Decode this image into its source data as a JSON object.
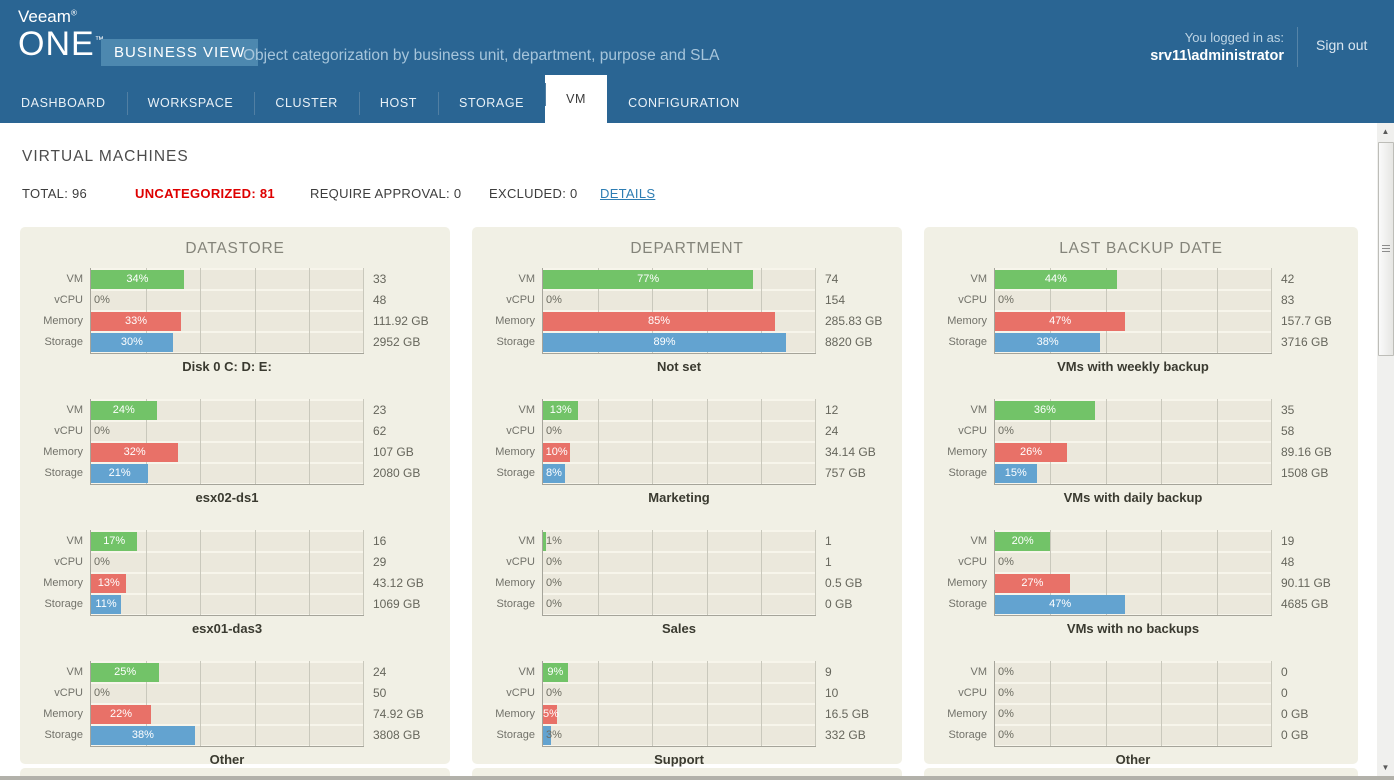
{
  "header": {
    "brand_line1": "Veeam",
    "brand_reg": "®",
    "brand_line2": "ONE",
    "brand_tm": "™",
    "badge": "BUSINESS VIEW",
    "subtitle": "Object categorization by business unit, department, purpose and SLA",
    "login_label": "You logged in as:",
    "login_user": "srv11\\administrator",
    "sign_out": "Sign out"
  },
  "nav": {
    "items": [
      "DASHBOARD",
      "WORKSPACE",
      "CLUSTER",
      "HOST",
      "STORAGE",
      "VM",
      "CONFIGURATION"
    ],
    "active": "VM"
  },
  "page": {
    "title": "VIRTUAL MACHINES",
    "stats": [
      {
        "text": "TOTAL: 96",
        "style": "normal"
      },
      {
        "text": "UNCATEGORIZED: 81",
        "style": "alert"
      },
      {
        "text": "REQUIRE APPROVAL: 0",
        "style": "normal"
      },
      {
        "text": "EXCLUDED: 0",
        "style": "normal"
      }
    ],
    "details_link": "DETAILS"
  },
  "colors": {
    "header_bg": "#2a6593",
    "badge_bg": "#4d88af",
    "alert_red": "#de0000",
    "link_blue": "#2d7db3",
    "panel_bg": "#f1f0e5",
    "bar_vm": "#72c368",
    "bar_vcpu": "#72c368",
    "bar_memory": "#e87168",
    "bar_storage": "#63a3d0"
  },
  "chart_data": [
    {
      "type": "bar",
      "title": "DATASTORE",
      "row_labels": [
        "VM",
        "vCPU",
        "Memory",
        "Storage"
      ],
      "xlim": [
        0,
        100
      ],
      "grid": true,
      "groups": [
        {
          "name": "Disk 0 C: D: E:",
          "bars": [
            {
              "metric": "VM",
              "pct": 34,
              "value": "33"
            },
            {
              "metric": "vCPU",
              "pct": 0,
              "value": "48"
            },
            {
              "metric": "Memory",
              "pct": 33,
              "value": "111.92 GB"
            },
            {
              "metric": "Storage",
              "pct": 30,
              "value": "2952 GB"
            }
          ]
        },
        {
          "name": "esx02-ds1",
          "bars": [
            {
              "metric": "VM",
              "pct": 24,
              "value": "23"
            },
            {
              "metric": "vCPU",
              "pct": 0,
              "value": "62"
            },
            {
              "metric": "Memory",
              "pct": 32,
              "value": "107 GB"
            },
            {
              "metric": "Storage",
              "pct": 21,
              "value": "2080 GB"
            }
          ]
        },
        {
          "name": "esx01-das3",
          "bars": [
            {
              "metric": "VM",
              "pct": 17,
              "value": "16"
            },
            {
              "metric": "vCPU",
              "pct": 0,
              "value": "29"
            },
            {
              "metric": "Memory",
              "pct": 13,
              "value": "43.12 GB"
            },
            {
              "metric": "Storage",
              "pct": 11,
              "value": "1069 GB"
            }
          ]
        },
        {
          "name": "Other",
          "bars": [
            {
              "metric": "VM",
              "pct": 25,
              "value": "24"
            },
            {
              "metric": "vCPU",
              "pct": 0,
              "value": "50"
            },
            {
              "metric": "Memory",
              "pct": 22,
              "value": "74.92 GB"
            },
            {
              "metric": "Storage",
              "pct": 38,
              "value": "3808 GB"
            }
          ]
        }
      ]
    },
    {
      "type": "bar",
      "title": "DEPARTMENT",
      "row_labels": [
        "VM",
        "vCPU",
        "Memory",
        "Storage"
      ],
      "xlim": [
        0,
        100
      ],
      "grid": true,
      "groups": [
        {
          "name": "Not set",
          "bars": [
            {
              "metric": "VM",
              "pct": 77,
              "value": "74"
            },
            {
              "metric": "vCPU",
              "pct": 0,
              "value": "154"
            },
            {
              "metric": "Memory",
              "pct": 85,
              "value": "285.83 GB"
            },
            {
              "metric": "Storage",
              "pct": 89,
              "value": "8820 GB"
            }
          ]
        },
        {
          "name": "Marketing",
          "bars": [
            {
              "metric": "VM",
              "pct": 13,
              "value": "12"
            },
            {
              "metric": "vCPU",
              "pct": 0,
              "value": "24"
            },
            {
              "metric": "Memory",
              "pct": 10,
              "value": "34.14 GB"
            },
            {
              "metric": "Storage",
              "pct": 8,
              "value": "757 GB"
            }
          ]
        },
        {
          "name": "Sales",
          "bars": [
            {
              "metric": "VM",
              "pct": 1,
              "value": "1"
            },
            {
              "metric": "vCPU",
              "pct": 0,
              "value": "1"
            },
            {
              "metric": "Memory",
              "pct": 0,
              "value": "0.5 GB"
            },
            {
              "metric": "Storage",
              "pct": 0,
              "value": "0 GB"
            }
          ]
        },
        {
          "name": "Support",
          "bars": [
            {
              "metric": "VM",
              "pct": 9,
              "value": "9"
            },
            {
              "metric": "vCPU",
              "pct": 0,
              "value": "10"
            },
            {
              "metric": "Memory",
              "pct": 5,
              "value": "16.5 GB"
            },
            {
              "metric": "Storage",
              "pct": 3,
              "value": "332 GB"
            }
          ]
        }
      ]
    },
    {
      "type": "bar",
      "title": "LAST BACKUP DATE",
      "row_labels": [
        "VM",
        "vCPU",
        "Memory",
        "Storage"
      ],
      "xlim": [
        0,
        100
      ],
      "grid": true,
      "groups": [
        {
          "name": "VMs with weekly backup",
          "bars": [
            {
              "metric": "VM",
              "pct": 44,
              "value": "42"
            },
            {
              "metric": "vCPU",
              "pct": 0,
              "value": "83"
            },
            {
              "metric": "Memory",
              "pct": 47,
              "value": "157.7 GB"
            },
            {
              "metric": "Storage",
              "pct": 38,
              "value": "3716 GB"
            }
          ]
        },
        {
          "name": "VMs with daily backup",
          "bars": [
            {
              "metric": "VM",
              "pct": 36,
              "value": "35"
            },
            {
              "metric": "vCPU",
              "pct": 0,
              "value": "58"
            },
            {
              "metric": "Memory",
              "pct": 26,
              "value": "89.16 GB"
            },
            {
              "metric": "Storage",
              "pct": 15,
              "value": "1508 GB"
            }
          ]
        },
        {
          "name": "VMs with no backups",
          "bars": [
            {
              "metric": "VM",
              "pct": 20,
              "value": "19"
            },
            {
              "metric": "vCPU",
              "pct": 0,
              "value": "48"
            },
            {
              "metric": "Memory",
              "pct": 27,
              "value": "90.11 GB"
            },
            {
              "metric": "Storage",
              "pct": 47,
              "value": "4685 GB"
            }
          ]
        },
        {
          "name": "Other",
          "bars": [
            {
              "metric": "VM",
              "pct": 0,
              "value": "0"
            },
            {
              "metric": "vCPU",
              "pct": 0,
              "value": "0"
            },
            {
              "metric": "Memory",
              "pct": 0,
              "value": "0 GB"
            },
            {
              "metric": "Storage",
              "pct": 0,
              "value": "0 GB"
            }
          ]
        }
      ]
    }
  ]
}
